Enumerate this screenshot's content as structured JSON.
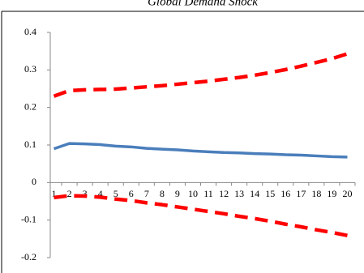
{
  "chart_data": {
    "type": "line",
    "title": "Global Demand Shock",
    "categories": [
      "1",
      "2",
      "3",
      "4",
      "5",
      "6",
      "7",
      "8",
      "9",
      "10",
      "11",
      "12",
      "13",
      "14",
      "15",
      "16",
      "17",
      "18",
      "19",
      "20"
    ],
    "series": [
      {
        "color": "#4a7ebb",
        "dashed": false,
        "values": [
          0.09,
          0.104,
          0.103,
          0.101,
          0.097,
          0.095,
          0.091,
          0.089,
          0.087,
          0.084,
          0.082,
          0.08,
          0.079,
          0.077,
          0.076,
          0.074,
          0.073,
          0.071,
          0.069,
          0.068
        ]
      },
      {
        "color": "#ff0000",
        "dashed": true,
        "values": [
          0.23,
          0.245,
          0.247,
          0.248,
          0.249,
          0.252,
          0.255,
          0.258,
          0.262,
          0.266,
          0.27,
          0.275,
          0.28,
          0.286,
          0.293,
          0.301,
          0.31,
          0.32,
          0.33,
          0.343
        ]
      },
      {
        "color": "#ff0000",
        "dashed": true,
        "values": [
          -0.04,
          -0.035,
          -0.036,
          -0.039,
          -0.044,
          -0.048,
          -0.054,
          -0.059,
          -0.065,
          -0.071,
          -0.077,
          -0.083,
          -0.09,
          -0.096,
          -0.103,
          -0.111,
          -0.118,
          -0.126,
          -0.133,
          -0.141
        ]
      }
    ],
    "ylim": [
      -0.2,
      0.4
    ],
    "yticks": [
      -0.2,
      -0.1,
      0,
      0.1,
      0.2,
      0.3,
      0.4
    ],
    "grid": false
  }
}
